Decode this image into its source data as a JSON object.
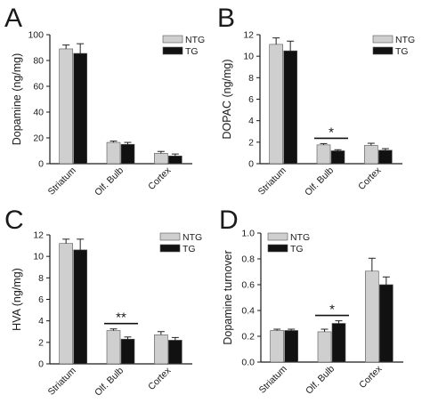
{
  "colors": {
    "NTG": "#cfcfcf",
    "TG": "#111111",
    "axis": "#1a1a1a"
  },
  "chart_data": [
    {
      "panel": "A",
      "type": "bar",
      "ylabel": "Dopamine (ng/mg)",
      "ylim": [
        0,
        100
      ],
      "yticks": [
        0,
        20,
        40,
        60,
        80,
        100
      ],
      "categories": [
        "Striatum",
        "Olf. Bulb",
        "Cortex"
      ],
      "legend_position": "top-right",
      "series": [
        {
          "name": "NTG",
          "values": [
            89,
            16.5,
            8
          ],
          "errors": [
            3,
            1,
            1.5
          ]
        },
        {
          "name": "TG",
          "values": [
            85.5,
            15,
            6
          ],
          "errors": [
            7.5,
            1.5,
            1.5
          ]
        }
      ],
      "significance": []
    },
    {
      "panel": "B",
      "type": "bar",
      "ylabel": "DOPAC (ng/mg)",
      "ylim": [
        0,
        12
      ],
      "yticks": [
        0,
        2,
        4,
        6,
        8,
        10,
        12
      ],
      "categories": [
        "Striatum",
        "Olf. Bulb",
        "Cortex"
      ],
      "legend_position": "top-right",
      "series": [
        {
          "name": "NTG",
          "values": [
            11.1,
            1.75,
            1.7
          ],
          "errors": [
            0.6,
            0.12,
            0.2
          ]
        },
        {
          "name": "TG",
          "values": [
            10.5,
            1.2,
            1.25
          ],
          "errors": [
            0.9,
            0.1,
            0.15
          ]
        }
      ],
      "significance": [
        {
          "category_index": 1,
          "label": "*"
        }
      ]
    },
    {
      "panel": "C",
      "type": "bar",
      "ylabel": "HVA (ng/mg)",
      "ylim": [
        0,
        12
      ],
      "yticks": [
        0,
        2,
        4,
        6,
        8,
        10,
        12
      ],
      "categories": [
        "Striatum",
        "Olf. Bulb",
        "Cortex"
      ],
      "legend_position": "top-right",
      "series": [
        {
          "name": "NTG",
          "values": [
            11.2,
            3.1,
            2.7
          ],
          "errors": [
            0.4,
            0.15,
            0.3
          ]
        },
        {
          "name": "TG",
          "values": [
            10.6,
            2.3,
            2.2
          ],
          "errors": [
            1.0,
            0.2,
            0.25
          ]
        }
      ],
      "significance": [
        {
          "category_index": 1,
          "label": "**"
        }
      ]
    },
    {
      "panel": "D",
      "type": "bar",
      "ylabel": "Dopamine turnover",
      "ylim": [
        0,
        1.0
      ],
      "yticks": [
        0.0,
        0.2,
        0.4,
        0.6,
        0.8,
        1.0
      ],
      "categories": [
        "Striatum",
        "Olf. Bulb",
        "Cortex"
      ],
      "legend_position": "top-left",
      "series": [
        {
          "name": "NTG",
          "values": [
            0.245,
            0.235,
            0.705
          ],
          "errors": [
            0.01,
            0.02,
            0.1
          ]
        },
        {
          "name": "TG",
          "values": [
            0.245,
            0.3,
            0.6
          ],
          "errors": [
            0.01,
            0.02,
            0.06
          ]
        }
      ],
      "significance": [
        {
          "category_index": 1,
          "label": "*"
        }
      ]
    }
  ]
}
